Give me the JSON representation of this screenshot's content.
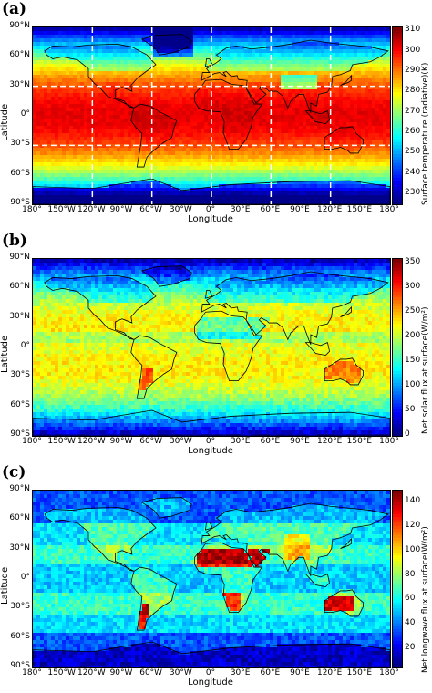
{
  "panels": [
    {
      "label": "(a)",
      "colorbar_label": "Surface temperature (radiative)(K)",
      "colorbar_ticks": [
        "310",
        "300",
        "290",
        "280",
        "270",
        "260",
        "250",
        "240",
        "230"
      ],
      "colorbar_range": [
        225,
        312
      ],
      "field": "surface-temperature",
      "grid_overlay": true
    },
    {
      "label": "(b)",
      "colorbar_label": "Net solar flux at surface(W/m²)",
      "colorbar_ticks": [
        "350",
        "300",
        "250",
        "200",
        "150",
        "100",
        "50",
        "0"
      ],
      "colorbar_range": [
        0,
        360
      ],
      "field": "net-solar-flux",
      "grid_overlay": false
    },
    {
      "label": "(c)",
      "colorbar_label": "Net longwave flux at surface(W/m²)",
      "colorbar_ticks": [
        "140",
        "120",
        "100",
        "80",
        "60",
        "40",
        "20"
      ],
      "colorbar_range": [
        5,
        150
      ],
      "field": "net-longwave-flux",
      "grid_overlay": false
    }
  ],
  "axes": {
    "y_ticks": [
      "90°N",
      "60°N",
      "30°N",
      "0°",
      "30°S",
      "60°S",
      "90°S"
    ],
    "x_ticks": [
      "180°",
      "150°W",
      "120°W",
      "90°W",
      "60°W",
      "30°W",
      "0°",
      "30°E",
      "60°E",
      "90°E",
      "120°E",
      "150°E",
      "180°"
    ],
    "x_label": "Longitude",
    "y_label": "Latitude"
  },
  "colormap": "jet"
}
